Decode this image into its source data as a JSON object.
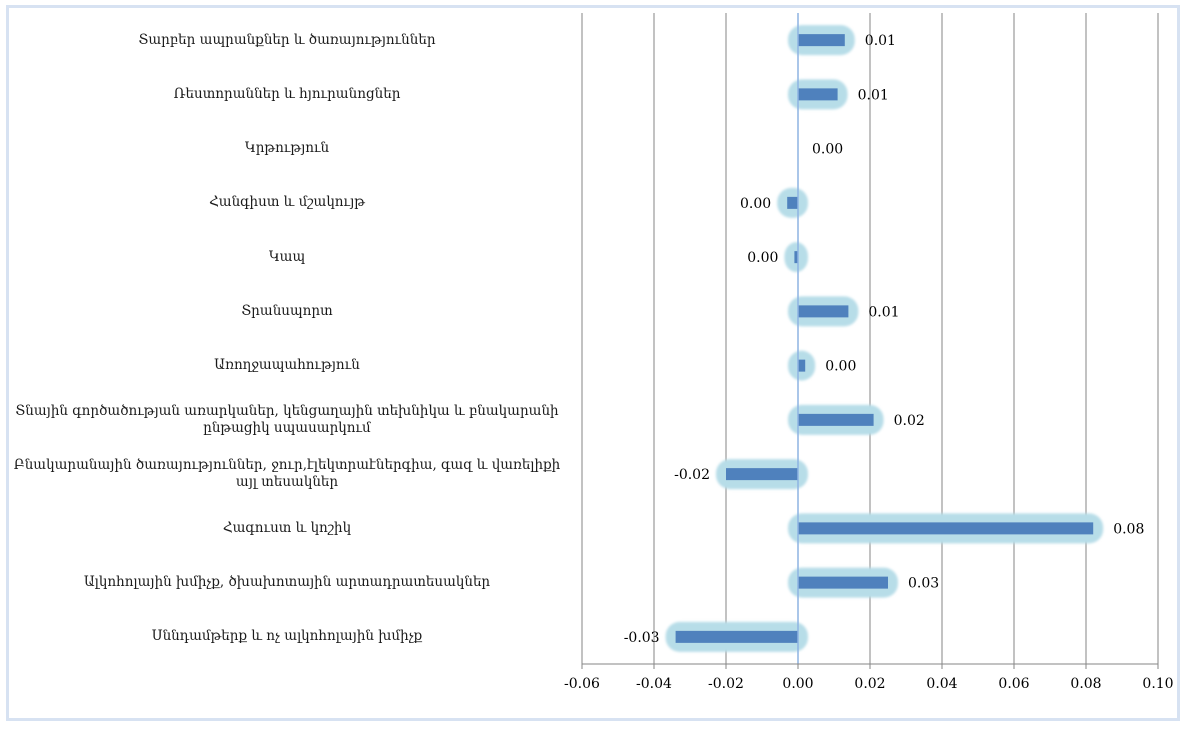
{
  "chart_data": {
    "type": "bar",
    "orientation": "horizontal",
    "title": "",
    "xlabel": "",
    "ylabel": "",
    "xlim": [
      -0.06,
      0.1
    ],
    "x_ticks": [
      "-0.06",
      "-0.04",
      "-0.02",
      "0.00",
      "0.02",
      "0.04",
      "0.06",
      "0.08",
      "0.10"
    ],
    "grid": "vertical",
    "categories": [
      "Տարբեր ապրանքներ և ծառայություններ",
      "Ռեստորաններ և հյուրանոցներ",
      "Կրթություն",
      "Հանգիստ և մշակույթ",
      "Կապ",
      "Տրանսպորտ",
      "Առողջապահություն",
      "Տնային գործածության առարկաներ, կենցաղային տեխնիկա և բնակարանի ընթացիկ սպասարկում",
      "Բնակարանային ծառայություններ, ջուր,էլեկտրաէներգիա, գազ և վառելիքի այլ տեսակներ",
      "Հագուստ և կոշիկ",
      "Ալկոհոլային խմիչք, ծխախոտային արտադրատեսակներ",
      "Սննդամթերք և ոչ ալկոհոլային խմիչք"
    ],
    "values": [
      0.013,
      0.011,
      0.0,
      -0.003,
      -0.001,
      0.014,
      0.002,
      0.021,
      -0.02,
      0.082,
      0.025,
      -0.034
    ],
    "data_labels": [
      "0.01",
      "0.01",
      "0.00",
      "0.00",
      "0.00",
      "0.01",
      "0.00",
      "0.02",
      "-0.02",
      "0.08",
      "0.03",
      "-0.03"
    ],
    "colors": {
      "bar": "#4f81bd",
      "glow": "#b7dde8",
      "grid": "#868686",
      "zero_line": "#8db3e2",
      "frame": "#d7e2f2"
    }
  }
}
